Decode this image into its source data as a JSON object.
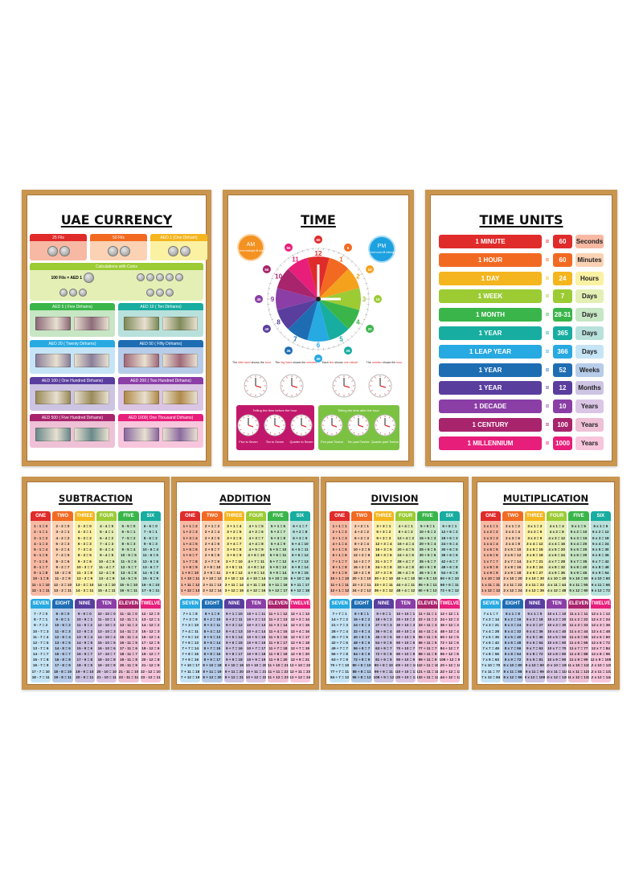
{
  "colors": {
    "frame": "#c9954f",
    "col": [
      "#e02b2b",
      "#f26a22",
      "#f4b51e",
      "#9ccb34",
      "#3ab54a",
      "#17ada0",
      "#27a9e1",
      "#1e6db3",
      "#5a3e9e",
      "#8a3ea6",
      "#a8246c",
      "#e81e7b"
    ],
    "light": [
      "#f7b9a3",
      "#fbd2b4",
      "#fbf1a3",
      "#e4efb5",
      "#c7e6c4",
      "#b8e1dc",
      "#c5e5f6",
      "#b6cce9",
      "#cdc4e3",
      "#dbc5e5",
      "#efc1d6",
      "#f7c6dc"
    ]
  },
  "currency": {
    "title": "UAE CURRENCY",
    "coins": [
      "25 Fils",
      "50 Fils",
      "AED 1 (One Dirham)"
    ],
    "calc_title": "Calculations with Coins",
    "calc_text": "100 Fils = AED 1",
    "notes": [
      "AED 5 ( Five Dirhams)",
      "AED 10 ( Ten Dirhams)",
      "AED 20 ( Twenty Dirhams)",
      "AED 50 ( Fifty Dirhams)",
      "AED 100 ( One Hundred Dirhams)",
      "AED 200 ( Two Hundred Dirhams)",
      "AED 500 ( Five Hundred Dirhams)",
      "AED 1000( One Thousand Dirhams)"
    ]
  },
  "time": {
    "title": "TIME",
    "am": "AM",
    "am_text": "is from midnight till noon",
    "pm": "PM",
    "pm_text": "is from noon till midnight",
    "hours": [
      "12",
      "1",
      "2",
      "3",
      "4",
      "5",
      "6",
      "7",
      "8",
      "9",
      "10",
      "11"
    ],
    "minutes": [
      "60",
      "5",
      "10",
      "15",
      "20",
      "25",
      "30",
      "35",
      "40",
      "45",
      "50",
      "55"
    ],
    "captions": [
      [
        "The ",
        "little hand",
        " shows the ",
        "hour"
      ],
      [
        "The ",
        "big hand",
        " shows the ",
        "minutes"
      ],
      [
        "Each ",
        "line",
        " shows ",
        "one minute"
      ],
      [
        "The ",
        "number",
        " shows the ",
        "hour"
      ]
    ],
    "before_title": "Telling the time before the hour",
    "before": [
      "Five to Seven",
      "Ten to Seven",
      "Quarter to Seven"
    ],
    "after_title": "Telling the time after the hour",
    "after": [
      "Five past Twelve",
      "Ten past Twelve",
      "Quarter past Twelve"
    ]
  },
  "time_units": {
    "title": "TIME UNITS",
    "rows": [
      [
        "1 MINUTE",
        "60",
        "Seconds"
      ],
      [
        "1 HOUR",
        "60",
        "Minutes"
      ],
      [
        "1 DAY",
        "24",
        "Hours"
      ],
      [
        "1 WEEK",
        "7",
        "Days"
      ],
      [
        "1 MONTH",
        "28-31",
        "Days"
      ],
      [
        "1 YEAR",
        "365",
        "Days"
      ],
      [
        "1 LEAP YEAR",
        "366",
        "Days"
      ],
      [
        "1 YEAR",
        "52",
        "Weeks"
      ],
      [
        "1 YEAR",
        "12",
        "Months"
      ],
      [
        "1 DECADE",
        "10",
        "Years"
      ],
      [
        "1 CENTURY",
        "100",
        "Years"
      ],
      [
        "1 MILLENNIUM",
        "1000",
        "Years"
      ]
    ]
  },
  "number_words": [
    "ONE",
    "TWO",
    "THREE",
    "FOUR",
    "FIVE",
    "SIX",
    "SEVEN",
    "EIGHT",
    "NINE",
    "TEN",
    "ELEVEN",
    "TWELVE"
  ],
  "math": [
    {
      "title": "SUBTRACTION",
      "cols": [
        [
          "1 - 1 = 0",
          "2 - 1 = 1",
          "3 - 1 = 2",
          "4 - 1 = 3",
          "5 - 1 = 4",
          "6 - 1 = 5",
          "7 - 1 = 6",
          "8 - 1 = 7",
          "9 - 1 = 8",
          "10 - 1 = 9",
          "11 - 1 = 10",
          "12 - 1 = 11"
        ],
        [
          "2 - 2 = 0",
          "3 - 2 = 1",
          "4 - 2 = 2",
          "5 - 2 = 3",
          "6 - 2 = 4",
          "7 - 2 = 5",
          "8 - 2 = 6",
          "9 - 2 = 7",
          "10 - 2 = 8",
          "11 - 2 = 9",
          "12 - 2 = 10",
          "13 - 2 = 11"
        ],
        [
          "3 - 3 = 0",
          "4 - 3 = 1",
          "5 - 3 = 2",
          "6 - 3 = 3",
          "7 - 3 = 4",
          "8 - 3 = 5",
          "9 - 3 = 6",
          "10 - 3 = 7",
          "11 - 3 = 8",
          "12 - 3 = 9",
          "13 - 3 = 10",
          "14 - 3 = 11"
        ],
        [
          "4 - 4 = 0",
          "5 - 4 = 1",
          "6 - 4 = 2",
          "7 - 4 = 3",
          "8 - 4 = 4",
          "9 - 4 = 5",
          "10 - 4 = 6",
          "11 - 4 = 7",
          "12 - 4 = 8",
          "13 - 4 = 9",
          "14 - 4 = 10",
          "15 - 4 = 11"
        ],
        [
          "5 - 5 = 0",
          "6 - 5 = 1",
          "7 - 5 = 2",
          "8 - 5 = 3",
          "9 - 5 = 4",
          "10 - 5 = 5",
          "11 - 5 = 6",
          "12 - 5 = 7",
          "13 - 5 = 8",
          "14 - 5 = 9",
          "15 - 5 = 10",
          "16 - 5 = 11"
        ],
        [
          "6 - 6 = 0",
          "7 - 6 = 1",
          "8 - 6 = 2",
          "9 - 6 = 3",
          "10 - 6 = 4",
          "11 - 6 = 5",
          "12 - 6 = 6",
          "13 - 6 = 7",
          "14 - 6 = 8",
          "15 - 6 = 9",
          "16 - 6 = 10",
          "17 - 6 = 11"
        ],
        [
          "7 - 7 = 0",
          "8 - 7 = 1",
          "9 - 7 = 2",
          "10 - 7 = 3",
          "11 - 7 = 4",
          "12 - 7 = 5",
          "13 - 7 = 6",
          "14 - 7 = 7",
          "15 - 7 = 8",
          "16 - 7 = 9",
          "17 - 7 = 10",
          "18 - 7 = 11"
        ],
        [
          "8 - 8 = 0",
          "9 - 8 = 1",
          "10 - 8 = 2",
          "11 - 8 = 3",
          "12 - 8 = 4",
          "13 - 8 = 5",
          "14 - 8 = 6",
          "15 - 8 = 7",
          "16 - 8 = 8",
          "17 - 8 = 9",
          "18 - 8 = 10",
          "19 - 8 = 11"
        ],
        [
          "9 - 9 = 0",
          "10 - 9 = 1",
          "11 - 9 = 2",
          "12 - 9 = 3",
          "13 - 9 = 4",
          "14 - 9 = 5",
          "15 - 9 = 6",
          "16 - 9 = 7",
          "17 - 9 = 8",
          "18 - 9 = 9",
          "19 - 9 = 10",
          "20 - 9 = 11"
        ],
        [
          "10 - 10 = 0",
          "11 - 10 = 1",
          "12 - 10 = 2",
          "13 - 10 = 3",
          "14 - 10 = 4",
          "15 - 10 = 5",
          "16 - 10 = 6",
          "17 - 10 = 7",
          "18 - 10 = 8",
          "19 - 10 = 9",
          "20 - 10 = 10",
          "21 - 10 = 11"
        ],
        [
          "11 - 11 = 0",
          "12 - 11 = 1",
          "13 - 11 = 2",
          "14 - 11 = 3",
          "15 - 11 = 4",
          "16 - 11 = 5",
          "17 - 11 = 6",
          "18 - 11 = 7",
          "19 - 11 = 8",
          "20 - 11 = 9",
          "21 - 11 = 10",
          "22 - 11 = 11"
        ],
        [
          "12 - 12 = 0",
          "13 - 12 = 1",
          "14 - 12 = 2",
          "15 - 12 = 3",
          "16 - 12 = 4",
          "17 - 12 = 5",
          "18 - 12 = 6",
          "19 - 12 = 7",
          "20 - 12 = 8",
          "21 - 12 = 9",
          "22 - 12 = 10",
          "23 - 12 = 11"
        ]
      ]
    },
    {
      "title": "ADDITION",
      "cols": [
        [
          "1 + 1 = 2",
          "1 + 2 = 3",
          "1 + 3 = 4",
          "1 + 4 = 5",
          "1 + 5 = 6",
          "1 + 6 = 7",
          "1 + 7 = 8",
          "1 + 8 = 9",
          "1 + 9 = 10",
          "1 + 10 = 11",
          "1 + 11 = 12",
          "1 + 12 = 13"
        ],
        [
          "2 + 1 = 3",
          "2 + 2 = 4",
          "2 + 3 = 5",
          "2 + 4 = 6",
          "2 + 5 = 7",
          "2 + 6 = 8",
          "2 + 7 = 9",
          "2 + 8 = 10",
          "2 + 9 = 11",
          "2 + 10 = 12",
          "2 + 11 = 13",
          "2 + 12 = 14"
        ],
        [
          "3 + 1 = 4",
          "3 + 2 = 5",
          "3 + 3 = 6",
          "3 + 4 = 7",
          "3 + 5 = 8",
          "3 + 6 = 9",
          "3 + 7 = 10",
          "3 + 8 = 11",
          "3 + 9 = 12",
          "3 + 10 = 13",
          "3 + 11 = 14",
          "3 + 12 = 15"
        ],
        [
          "4 + 1 = 5",
          "4 + 2 = 6",
          "4 + 3 = 7",
          "4 + 4 = 8",
          "4 + 5 = 9",
          "4 + 6 = 10",
          "4 + 7 = 11",
          "4 + 8 = 12",
          "4 + 9 = 13",
          "4 + 10 = 14",
          "4 + 11 = 15",
          "4 + 12 = 16"
        ],
        [
          "5 + 1 = 6",
          "5 + 2 = 7",
          "5 + 3 = 8",
          "5 + 4 = 9",
          "5 + 5 = 10",
          "5 + 6 = 11",
          "5 + 7 = 12",
          "5 + 8 = 13",
          "5 + 9 = 14",
          "5 + 10 = 15",
          "5 + 11 = 16",
          "5 + 12 = 17"
        ],
        [
          "6 + 1 = 7",
          "6 + 2 = 8",
          "6 + 3 = 9",
          "6 + 4 = 10",
          "6 + 5 = 11",
          "6 + 6 = 12",
          "6 + 7 = 13",
          "6 + 8 = 14",
          "6 + 9 = 15",
          "6 + 10 = 16",
          "6 + 11 = 17",
          "6 + 12 = 18"
        ],
        [
          "7 + 1 = 8",
          "7 + 2 = 9",
          "7 + 3 = 10",
          "7 + 4 = 11",
          "7 + 5 = 12",
          "7 + 6 = 13",
          "7 + 7 = 14",
          "7 + 8 = 15",
          "7 + 9 = 16",
          "7 + 10 = 17",
          "7 + 11 = 18",
          "7 + 12 = 19"
        ],
        [
          "8 + 1 = 9",
          "8 + 2 = 10",
          "8 + 3 = 11",
          "8 + 4 = 12",
          "8 + 5 = 13",
          "8 + 6 = 14",
          "8 + 7 = 15",
          "8 + 8 = 16",
          "8 + 9 = 17",
          "8 + 10 = 18",
          "8 + 11 = 19",
          "8 + 12 = 20"
        ],
        [
          "9 + 1 = 10",
          "9 + 2 = 11",
          "9 + 3 = 12",
          "9 + 4 = 13",
          "9 + 5 = 14",
          "9 + 6 = 15",
          "9 + 7 = 16",
          "9 + 8 = 17",
          "9 + 9 = 18",
          "9 + 10 = 19",
          "9 + 11 = 20",
          "9 + 12 = 21"
        ],
        [
          "10 + 1 = 11",
          "10 + 2 = 12",
          "10 + 3 = 13",
          "10 + 4 = 14",
          "10 + 5 = 15",
          "10 + 6 = 16",
          "10 + 7 = 17",
          "10 + 8 = 18",
          "10 + 9 = 19",
          "10 + 10 = 20",
          "10 + 11 = 21",
          "10 + 12 = 22"
        ],
        [
          "11 + 1 = 12",
          "11 + 2 = 13",
          "11 + 3 = 14",
          "11 + 4 = 15",
          "11 + 5 = 16",
          "11 + 6 = 17",
          "11 + 7 = 18",
          "11 + 8 = 19",
          "11 + 9 = 20",
          "11 + 10 = 21",
          "11 + 11 = 22",
          "11 + 12 = 23"
        ],
        [
          "12 + 1 = 13",
          "12 + 2 = 14",
          "12 + 3 = 15",
          "12 + 4 = 16",
          "12 + 5 = 17",
          "12 + 6 = 18",
          "12 + 7 = 19",
          "12 + 8 = 20",
          "12 + 9 = 21",
          "12 + 10 = 22",
          "12 + 11 = 23",
          "12 + 12 = 24"
        ]
      ]
    },
    {
      "title": "DIVISION",
      "cols": [
        [
          "1 ÷ 1 = 1",
          "2 ÷ 1 = 2",
          "3 ÷ 1 = 3",
          "4 ÷ 1 = 4",
          "5 ÷ 1 = 5",
          "6 ÷ 1 = 6",
          "7 ÷ 1 = 7",
          "8 ÷ 1 = 8",
          "9 ÷ 1 = 9",
          "10 ÷ 1 = 10",
          "11 ÷ 1 = 11",
          "12 ÷ 1 = 12"
        ],
        [
          "2 ÷ 2 = 1",
          "4 ÷ 2 = 2",
          "6 ÷ 2 = 3",
          "8 ÷ 2 = 4",
          "10 ÷ 2 = 5",
          "12 ÷ 2 = 6",
          "14 ÷ 2 = 7",
          "16 ÷ 2 = 8",
          "18 ÷ 2 = 9",
          "20 ÷ 2 = 10",
          "22 ÷ 2 = 11",
          "24 ÷ 2 = 12"
        ],
        [
          "3 ÷ 3 = 1",
          "6 ÷ 3 = 2",
          "9 ÷ 3 = 3",
          "12 ÷ 3 = 4",
          "15 ÷ 3 = 5",
          "18 ÷ 3 = 6",
          "21 ÷ 3 = 7",
          "24 ÷ 3 = 8",
          "27 ÷ 3 = 9",
          "30 ÷ 3 = 10",
          "33 ÷ 3 = 11",
          "36 ÷ 3 = 12"
        ],
        [
          "4 ÷ 4 = 1",
          "8 ÷ 4 = 2",
          "12 ÷ 4 = 3",
          "16 ÷ 4 = 4",
          "20 ÷ 4 = 5",
          "24 ÷ 4 = 6",
          "28 ÷ 4 = 7",
          "32 ÷ 4 = 8",
          "36 ÷ 4 = 9",
          "40 ÷ 4 = 10",
          "44 ÷ 4 = 11",
          "48 ÷ 4 = 12"
        ],
        [
          "5 ÷ 5 = 1",
          "10 ÷ 5 = 2",
          "15 ÷ 5 = 3",
          "20 ÷ 5 = 4",
          "25 ÷ 5 = 5",
          "30 ÷ 5 = 6",
          "35 ÷ 5 = 7",
          "40 ÷ 5 = 8",
          "45 ÷ 5 = 9",
          "50 ÷ 5 = 10",
          "55 ÷ 5 = 11",
          "60 ÷ 5 = 12"
        ],
        [
          "6 ÷ 6 = 1",
          "12 ÷ 6 = 2",
          "18 ÷ 6 = 3",
          "24 ÷ 6 = 4",
          "30 ÷ 6 = 5",
          "36 ÷ 6 = 6",
          "42 ÷ 6 = 7",
          "48 ÷ 6 = 8",
          "54 ÷ 6 = 9",
          "60 ÷ 6 = 10",
          "66 ÷ 6 = 11",
          "72 ÷ 6 = 12"
        ],
        [
          "7 ÷ 7 = 1",
          "14 ÷ 7 = 2",
          "21 ÷ 7 = 3",
          "28 ÷ 7 = 4",
          "35 ÷ 7 = 5",
          "42 ÷ 7 = 6",
          "49 ÷ 7 = 7",
          "56 ÷ 7 = 8",
          "63 ÷ 7 = 9",
          "70 ÷ 7 = 10",
          "77 ÷ 7 = 11",
          "84 ÷ 7 = 12"
        ],
        [
          "8 ÷ 8 = 1",
          "16 ÷ 8 = 2",
          "24 ÷ 8 = 3",
          "32 ÷ 8 = 4",
          "40 ÷ 8 = 5",
          "48 ÷ 8 = 6",
          "56 ÷ 8 = 7",
          "64 ÷ 8 = 8",
          "72 ÷ 8 = 9",
          "80 ÷ 8 = 10",
          "88 ÷ 8 = 11",
          "96 ÷ 8 = 12"
        ],
        [
          "9 ÷ 9 = 1",
          "18 ÷ 9 = 2",
          "27 ÷ 9 = 3",
          "36 ÷ 9 = 4",
          "45 ÷ 9 = 5",
          "54 ÷ 9 = 6",
          "63 ÷ 9 = 7",
          "72 ÷ 9 = 8",
          "81 ÷ 9 = 9",
          "90 ÷ 9 = 10",
          "99 ÷ 9 = 11",
          "108 ÷ 9 = 12"
        ],
        [
          "10 ÷ 10 = 1",
          "20 ÷ 10 = 2",
          "30 ÷ 10 = 3",
          "40 ÷ 10 = 4",
          "50 ÷ 10 = 5",
          "60 ÷ 10 = 6",
          "70 ÷ 10 = 7",
          "80 ÷ 10 = 8",
          "90 ÷ 10 = 9",
          "100 ÷ 10 = 10",
          "110 ÷ 10 = 11",
          "120 ÷ 10 = 12"
        ],
        [
          "11 ÷ 11 = 1",
          "22 ÷ 11 = 2",
          "33 ÷ 11 = 3",
          "44 ÷ 11 = 4",
          "55 ÷ 11 = 5",
          "66 ÷ 11 = 6",
          "77 ÷ 11 = 7",
          "88 ÷ 11 = 8",
          "99 ÷ 11 = 9",
          "110 ÷ 11 = 10",
          "121 ÷ 11 = 11",
          "132 ÷ 11 = 12"
        ],
        [
          "12 ÷ 12 = 1",
          "24 ÷ 12 = 2",
          "36 ÷ 12 = 3",
          "48 ÷ 12 = 4",
          "60 ÷ 12 = 5",
          "72 ÷ 12 = 6",
          "84 ÷ 12 = 7",
          "96 ÷ 12 = 8",
          "108 ÷ 12 = 9",
          "120 ÷ 12 = 10",
          "132 ÷ 12 = 11",
          "144 ÷ 12 = 12"
        ]
      ]
    },
    {
      "title": "MULTIPLICATION",
      "cols": [
        [
          "1 x 1 = 1",
          "1 x 2 = 2",
          "1 x 3 = 3",
          "1 x 4 = 4",
          "1 x 5 = 5",
          "1 x 6 = 6",
          "1 x 7 = 7",
          "1 x 8 = 8",
          "1 x 9 = 9",
          "1 x 10 = 10",
          "1 x 11 = 11",
          "1 x 12 = 12"
        ],
        [
          "2 x 1 = 2",
          "2 x 2 = 4",
          "2 x 3 = 6",
          "2 x 4 = 8",
          "2 x 5 = 10",
          "2 x 6 = 12",
          "2 x 7 = 14",
          "2 x 8 = 16",
          "2 x 9 = 18",
          "2 x 10 = 20",
          "2 x 11 = 22",
          "2 x 12 = 24"
        ],
        [
          "3 x 1 = 3",
          "3 x 2 = 6",
          "3 x 3 = 9",
          "3 x 4 = 12",
          "3 x 5 = 15",
          "3 x 6 = 18",
          "3 x 7 = 21",
          "3 x 8 = 24",
          "3 x 9 = 27",
          "3 x 10 = 30",
          "3 x 11 = 33",
          "3 x 12 = 36"
        ],
        [
          "4 x 1 = 4",
          "4 x 2 = 8",
          "4 x 3 = 12",
          "4 x 4 = 16",
          "4 x 5 = 20",
          "4 x 6 = 24",
          "4 x 7 = 28",
          "4 x 8 = 32",
          "4 x 9 = 36",
          "4 x 10 = 40",
          "4 x 11 = 44",
          "4 x 12 = 48"
        ],
        [
          "5 x 1 = 5",
          "5 x 2 = 10",
          "5 x 3 = 15",
          "5 x 4 = 20",
          "5 x 5 = 25",
          "5 x 6 = 30",
          "5 x 7 = 35",
          "5 x 8 = 40",
          "5 x 9 = 45",
          "5 x 10 = 50",
          "5 x 11 = 55",
          "5 x 12 = 60"
        ],
        [
          "6 x 1 = 6",
          "6 x 2 = 12",
          "6 x 3 = 18",
          "6 x 4 = 24",
          "6 x 5 = 30",
          "6 x 6 = 36",
          "6 x 7 = 42",
          "6 x 8 = 48",
          "6 x 9 = 54",
          "6 x 10 = 60",
          "6 x 11 = 66",
          "6 x 12 = 72"
        ],
        [
          "7 x 1 = 7",
          "7 x 2 = 14",
          "7 x 3 = 21",
          "7 x 4 = 28",
          "7 x 5 = 35",
          "7 x 6 = 42",
          "7 x 7 = 49",
          "7 x 8 = 56",
          "7 x 9 = 63",
          "7 x 10 = 70",
          "7 x 11 = 77",
          "7 x 12 = 84"
        ],
        [
          "8 x 1 = 8",
          "8 x 2 = 16",
          "8 x 3 = 24",
          "8 x 4 = 32",
          "8 x 5 = 40",
          "8 x 6 = 48",
          "8 x 7 = 56",
          "8 x 8 = 64",
          "8 x 9 = 72",
          "8 x 10 = 80",
          "8 x 11 = 88",
          "8 x 12 = 96"
        ],
        [
          "9 x 1 = 9",
          "9 x 2 = 18",
          "9 x 3 = 27",
          "9 x 4 = 36",
          "9 x 5 = 45",
          "9 x 6 = 54",
          "9 x 7 = 63",
          "9 x 8 = 72",
          "9 x 9 = 81",
          "9 x 10 = 90",
          "9 x 11 = 99",
          "9 x 12 = 108"
        ],
        [
          "10 x 1 = 10",
          "10 x 2 = 20",
          "10 x 3 = 30",
          "10 x 4 = 40",
          "10 x 5 = 50",
          "10 x 6 = 60",
          "10 x 7 = 70",
          "10 x 8 = 80",
          "10 x 9 = 90",
          "10 x 10 = 100",
          "10 x 11 = 110",
          "10 x 12 = 120"
        ],
        [
          "11 x 1 = 11",
          "11 x 2 = 22",
          "11 x 3 = 33",
          "11 x 4 = 44",
          "11 x 5 = 55",
          "11 x 6 = 66",
          "11 x 7 = 77",
          "11 x 8 = 88",
          "11 x 9 = 99",
          "11 x 10 = 110",
          "11 x 11 = 121",
          "11 x 12 = 132"
        ],
        [
          "12 x 1 = 12",
          "12 x 2 = 24",
          "12 x 3 = 36",
          "12 x 4 = 48",
          "12 x 5 = 60",
          "12 x 6 = 72",
          "12 x 7 = 84",
          "12 x 8 = 96",
          "12 x 9 = 108",
          "12 x 10 = 120",
          "12 x 11 = 132",
          "12 x 12 = 144"
        ]
      ]
    }
  ]
}
